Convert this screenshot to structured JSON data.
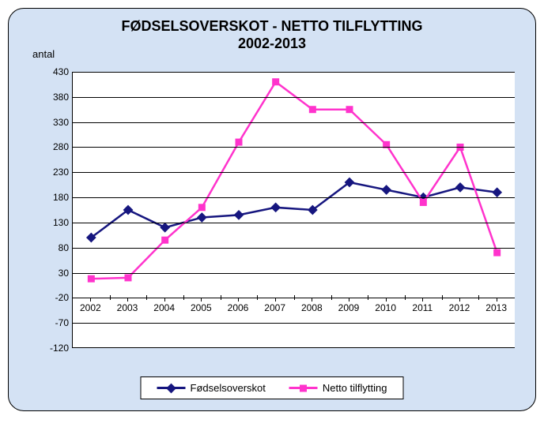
{
  "chart": {
    "type": "line",
    "title_line1": "FØDSELSOVERSKOT - NETTO TILFLYTTING",
    "title_line2": "2002-2013",
    "title_fontsize": 18,
    "ylabel": "antal",
    "background_color": "#d4e2f4",
    "plot_background": "#ffffff",
    "grid_color": "#000000",
    "categories": [
      "2002",
      "2003",
      "2004",
      "2005",
      "2006",
      "2007",
      "2008",
      "2009",
      "2010",
      "2011",
      "2012",
      "2013"
    ],
    "ylim": [
      -120,
      430
    ],
    "ytick_step": 50,
    "yticks": [
      -120,
      -70,
      -20,
      30,
      80,
      130,
      180,
      230,
      280,
      330,
      380,
      430
    ],
    "series": [
      {
        "name": "Fødselsoverskot",
        "color": "#16167f",
        "marker": "diamond",
        "marker_size": 9,
        "line_width": 2.5,
        "values": [
          100,
          155,
          120,
          140,
          145,
          160,
          155,
          210,
          195,
          180,
          200,
          190
        ]
      },
      {
        "name": "Netto tilflytting",
        "color": "#ff33cc",
        "marker": "square",
        "marker_size": 9,
        "line_width": 2.5,
        "values": [
          18,
          20,
          95,
          160,
          290,
          410,
          355,
          355,
          285,
          170,
          280,
          70
        ]
      }
    ],
    "legend_position": "bottom"
  }
}
